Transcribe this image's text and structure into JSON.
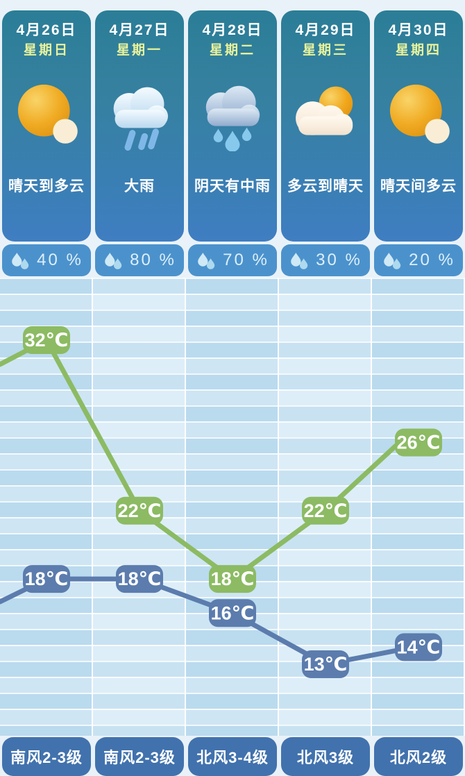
{
  "days": [
    {
      "date": "4月26日",
      "weekday": "星期日",
      "icon": "sunny",
      "desc": "晴天到多云",
      "precip": "40 %",
      "wind": "南风2-3级"
    },
    {
      "date": "4月27日",
      "weekday": "星期一",
      "icon": "heavy-rain",
      "desc": "大雨",
      "precip": "80 %",
      "wind": "南风2-3级"
    },
    {
      "date": "4月28日",
      "weekday": "星期二",
      "icon": "moderate-rain",
      "desc": "阴天有中雨",
      "precip": "70 %",
      "wind": "北风3-4级"
    },
    {
      "date": "4月29日",
      "weekday": "星期三",
      "icon": "cloud-sun",
      "desc": "多云到晴天",
      "precip": "30 %",
      "wind": "北风3级"
    },
    {
      "date": "4月30日",
      "weekday": "星期四",
      "icon": "sunny",
      "desc": "晴天间多云",
      "precip": "20 %",
      "wind": "北风2级"
    }
  ],
  "chart_data": {
    "type": "line",
    "categories": [
      "4月26日",
      "4月27日",
      "4月28日",
      "4月29日",
      "4月30日"
    ],
    "series": [
      {
        "name": "high-temperature",
        "values": [
          32,
          22,
          18,
          22,
          26
        ],
        "color": "#8cbb63"
      },
      {
        "name": "low-temperature",
        "values": [
          18,
          18,
          16,
          13,
          14
        ],
        "color": "#5b7cad"
      }
    ],
    "label_suffix": "℃",
    "unit": "℃",
    "grid": "horizontal-stripes",
    "legend": "none",
    "ylim": [
      10,
      34
    ]
  },
  "colors": {
    "card_top": "#2b7e97",
    "card_bottom": "#3f7ec2",
    "weekday_text": "#e9f29b",
    "precip_pill": "#4b92cc",
    "wind_pill": "#4172ad",
    "high_line": "#8cbb63",
    "low_line": "#5b7cad"
  }
}
